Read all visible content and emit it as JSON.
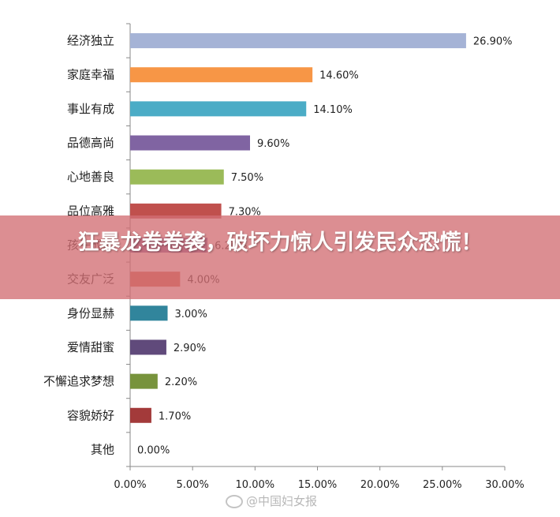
{
  "chart_data": {
    "type": "bar",
    "orientation": "horizontal",
    "categories": [
      "经济独立",
      "家庭幸福",
      "事业有成",
      "品德高尚",
      "心地善良",
      "品位高雅",
      "孩子成才",
      "交友广泛",
      "身份显赫",
      "爱情甜蜜",
      "不懈追求梦想",
      "容貌娇好",
      "其他"
    ],
    "values": [
      26.9,
      14.6,
      14.1,
      9.6,
      7.5,
      7.3,
      6.2,
      4.0,
      3.0,
      2.9,
      2.2,
      1.7,
      0.0
    ],
    "value_labels": [
      "26.90%",
      "14.60%",
      "14.10%",
      "9.60%",
      "7.50%",
      "7.30%",
      "6.20%",
      "4.00%",
      "3.00%",
      "2.90%",
      "2.20%",
      "1.70%",
      "0.00%"
    ],
    "bar_colors": [
      "#a5b3d6",
      "#f79646",
      "#4bacc6",
      "#8064a2",
      "#9bbb59",
      "#c0504d",
      "#7f63a1",
      "#d0664f",
      "#31859c",
      "#604a7b",
      "#77933c",
      "#a33a3a",
      "#7f7f7f"
    ],
    "xlim": [
      0,
      30
    ],
    "x_ticks": [
      0,
      5,
      10,
      15,
      20,
      25,
      30
    ],
    "x_tick_labels": [
      "0.00%",
      "5.00%",
      "10.00%",
      "15.00%",
      "20.00%",
      "25.00%",
      "30.00%"
    ],
    "title": "",
    "xlabel": "",
    "ylabel": "",
    "grid": false,
    "legend": "none"
  },
  "banner": {
    "text": "狂暴龙卷卷袭，破坏力惊人引发民众恐慌！",
    "color": "#d26e73"
  },
  "watermark": {
    "text": "@中国妇女报"
  }
}
